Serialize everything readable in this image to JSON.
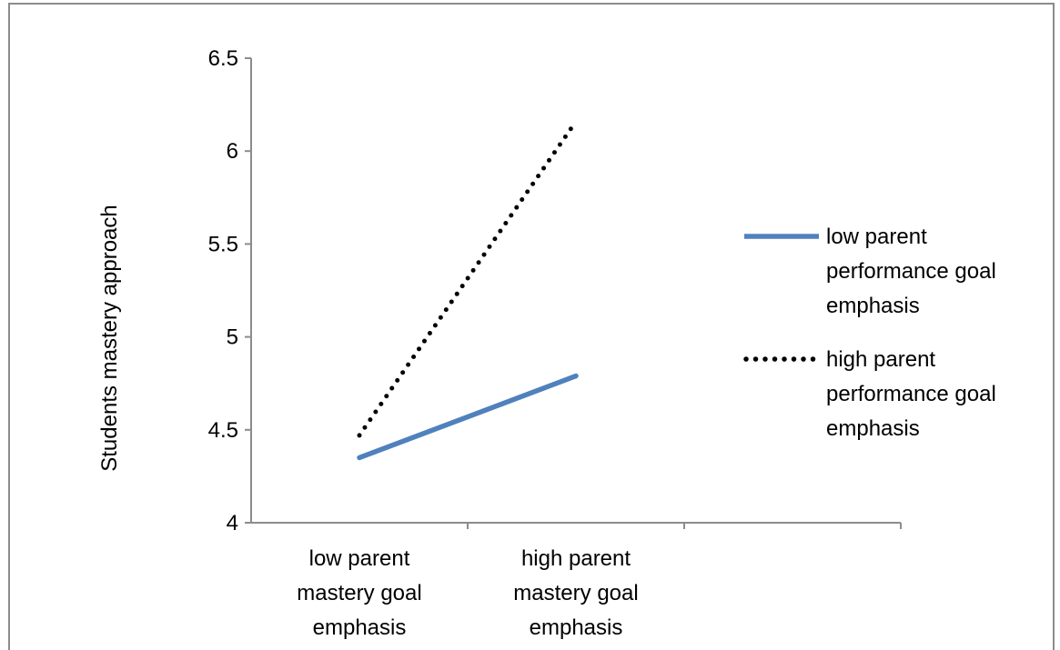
{
  "chart_data": {
    "type": "line",
    "title": "",
    "ylabel": "Students mastery approach",
    "xlabel": "",
    "ylim": [
      4,
      6.5
    ],
    "yticks": [
      "4",
      "4.5",
      "5",
      "5.5",
      "6",
      "6.5"
    ],
    "categories": [
      [
        "low parent",
        "mastery goal",
        "emphasis"
      ],
      [
        "high parent",
        "mastery goal",
        "emphasis"
      ]
    ],
    "grid": false,
    "legend_position": "right",
    "series": [
      {
        "name": [
          "low parent",
          "performance goal",
          "emphasis"
        ],
        "values": [
          4.35,
          4.79
        ],
        "color": "#4f81bd",
        "style": "solid"
      },
      {
        "name": [
          "high parent",
          "performance goal",
          "emphasis"
        ],
        "values": [
          4.47,
          6.16
        ],
        "color": "#000000",
        "style": "dotted"
      }
    ]
  }
}
